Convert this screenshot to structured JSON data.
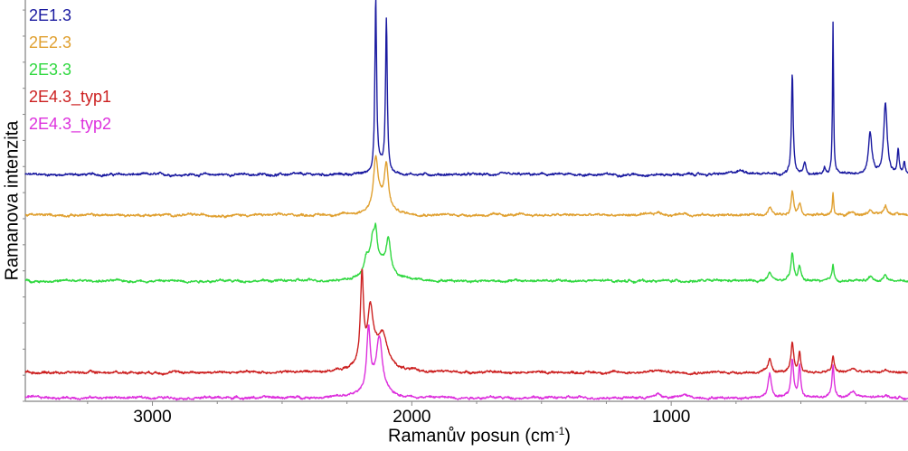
{
  "chart_data": {
    "type": "line",
    "title": "",
    "xlabel": "Ramanův posun",
    "xlabel_unit_base": "cm",
    "xlabel_unit_exp": "-1",
    "ylabel": "Ramanova intenzita",
    "xlim": [
      3490,
      87
    ],
    "ylim": [
      0,
      100
    ],
    "x_reversed": true,
    "x_ticks": [
      3000,
      2000,
      1000
    ],
    "x_tick_labels": [
      "3000",
      "2000",
      "1000"
    ],
    "y_tick_labels": [],
    "grid": false,
    "legend_position": "top-left",
    "series_model": "baseline offset + Lorentzian peaks [center cm-1, height, half-width]",
    "series": [
      {
        "name": "2E1.3",
        "color": "#1a1aa0",
        "baseline": 56.5,
        "peaks": [
          [
            2139,
            43,
            4
          ],
          [
            2098,
            37.8,
            4
          ],
          [
            2120,
            2,
            15
          ],
          [
            728,
            1,
            30
          ],
          [
            620,
            0.6,
            15
          ],
          [
            533,
            24.8,
            4
          ],
          [
            485,
            2.7,
            6
          ],
          [
            408,
            1.5,
            5
          ],
          [
            376,
            38,
            2.5
          ],
          [
            233,
            10.4,
            8
          ],
          [
            174,
            17.8,
            8
          ],
          [
            125,
            6,
            4
          ],
          [
            101,
            3,
            4
          ]
        ]
      },
      {
        "name": "2E2.3",
        "color": "#e0a030",
        "baseline": 46.4,
        "peaks": [
          [
            2139,
            12,
            10
          ],
          [
            2098,
            10.5,
            9
          ],
          [
            2120,
            3,
            35
          ],
          [
            1050,
            0.6,
            15
          ],
          [
            950,
            0.5,
            15
          ],
          [
            620,
            2,
            8
          ],
          [
            533,
            6,
            6
          ],
          [
            505,
            3,
            7
          ],
          [
            376,
            5.6,
            3
          ],
          [
            300,
            1,
            10
          ],
          [
            233,
            1.4,
            8
          ],
          [
            174,
            2.2,
            8
          ],
          [
            130,
            0.8,
            5
          ]
        ]
      },
      {
        "name": "2E3.3",
        "color": "#30d840",
        "baseline": 30,
        "peaks": [
          [
            2175,
            4,
            10
          ],
          [
            2150,
            8,
            12
          ],
          [
            2139,
            6,
            6
          ],
          [
            2090,
            8,
            10
          ],
          [
            2120,
            4,
            40
          ],
          [
            620,
            2,
            8
          ],
          [
            533,
            6.8,
            6
          ],
          [
            505,
            3.5,
            6
          ],
          [
            376,
            4,
            4
          ],
          [
            233,
            1,
            10
          ],
          [
            174,
            1.5,
            8
          ]
        ]
      },
      {
        "name": "2E4.3_typ1",
        "color": "#cc2020",
        "baseline": 7.2,
        "peaks": [
          [
            2192,
            22,
            7
          ],
          [
            2160,
            12,
            12
          ],
          [
            2110,
            6,
            18
          ],
          [
            2140,
            5,
            45
          ],
          [
            1050,
            0.5,
            20
          ],
          [
            620,
            3,
            8
          ],
          [
            533,
            7,
            6
          ],
          [
            505,
            5,
            5
          ],
          [
            376,
            4,
            5
          ],
          [
            300,
            1,
            12
          ],
          [
            174,
            0.8,
            8
          ]
        ]
      },
      {
        "name": "2E4.3_typ2",
        "color": "#dd30dd",
        "baseline": 0.9,
        "peaks": [
          [
            2167,
            15,
            8
          ],
          [
            2125,
            12.5,
            13
          ],
          [
            2145,
            3,
            40
          ],
          [
            1050,
            1,
            12
          ],
          [
            950,
            0.8,
            12
          ],
          [
            620,
            6,
            8
          ],
          [
            533,
            9.5,
            6
          ],
          [
            505,
            8,
            5
          ],
          [
            376,
            8,
            5
          ],
          [
            300,
            1.5,
            15
          ],
          [
            174,
            0.8,
            8
          ]
        ]
      }
    ]
  }
}
